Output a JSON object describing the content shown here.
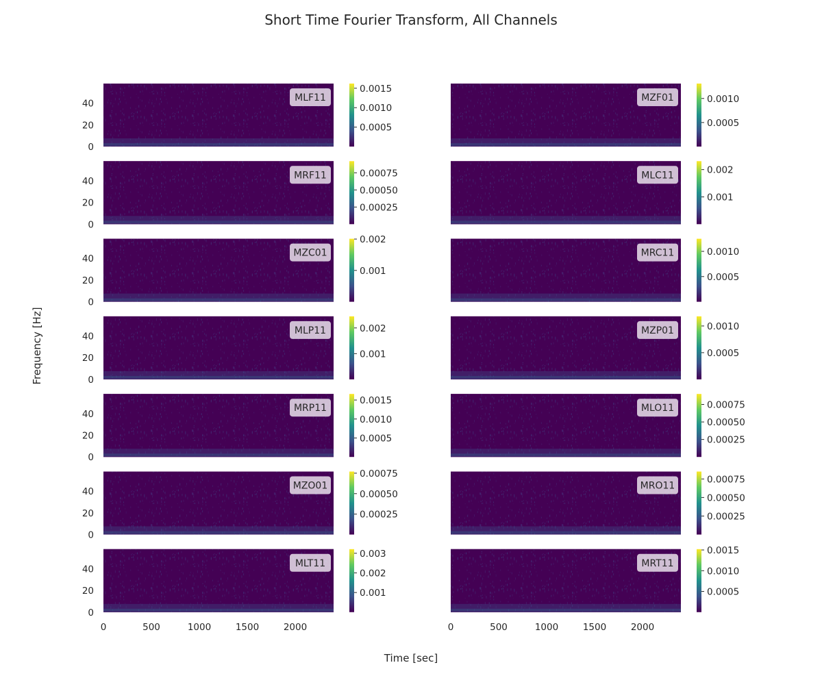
{
  "figure": {
    "title": "Short Time Fourier Transform, All Channels",
    "xlabel": "Time [sec]",
    "ylabel": "Frequency [Hz]"
  },
  "colormap": [
    "#440154",
    "#3b528b",
    "#21918c",
    "#5ec962",
    "#fde725"
  ],
  "chart_data": {
    "type": "heatmap",
    "x_ticks": [
      0,
      500,
      1000,
      1500,
      2000
    ],
    "y_ticks": [
      0,
      20,
      40
    ],
    "xlim": [
      0,
      2400
    ],
    "ylim": [
      0,
      58
    ],
    "panels": [
      {
        "channel": "MLF11",
        "colorbar_ticks": [
          "0.0005",
          "0.0010",
          "0.0015"
        ],
        "colorbar_tick_values": [
          0.0005,
          0.001,
          0.0015
        ],
        "colorbar_max": 0.00162
      },
      {
        "channel": "MZF01",
        "colorbar_ticks": [
          "0.0005",
          "0.0010"
        ],
        "colorbar_tick_values": [
          0.0005,
          0.001
        ],
        "colorbar_max": 0.00131
      },
      {
        "channel": "MRF11",
        "colorbar_ticks": [
          "0.00025",
          "0.00050",
          "0.00075"
        ],
        "colorbar_tick_values": [
          0.00025,
          0.0005,
          0.00075
        ],
        "colorbar_max": 0.00092
      },
      {
        "channel": "MLC11",
        "colorbar_ticks": [
          "0.001",
          "0.002"
        ],
        "colorbar_tick_values": [
          0.001,
          0.002
        ],
        "colorbar_max": 0.00231
      },
      {
        "channel": "MZC01",
        "colorbar_ticks": [
          "0.001",
          "0.002"
        ],
        "colorbar_tick_values": [
          0.001,
          0.002
        ],
        "colorbar_max": 0.00201
      },
      {
        "channel": "MRC11",
        "colorbar_ticks": [
          "0.0005",
          "0.0010"
        ],
        "colorbar_tick_values": [
          0.0005,
          0.001
        ],
        "colorbar_max": 0.00125
      },
      {
        "channel": "MLP11",
        "colorbar_ticks": [
          "0.001",
          "0.002"
        ],
        "colorbar_tick_values": [
          0.001,
          0.002
        ],
        "colorbar_max": 0.00245
      },
      {
        "channel": "MZP01",
        "colorbar_ticks": [
          "0.0005",
          "0.0010"
        ],
        "colorbar_tick_values": [
          0.0005,
          0.001
        ],
        "colorbar_max": 0.00118
      },
      {
        "channel": "MRP11",
        "colorbar_ticks": [
          "0.0005",
          "0.0010",
          "0.0015"
        ],
        "colorbar_tick_values": [
          0.0005,
          0.001,
          0.0015
        ],
        "colorbar_max": 0.00166
      },
      {
        "channel": "MLO11",
        "colorbar_ticks": [
          "0.00025",
          "0.00050",
          "0.00075"
        ],
        "colorbar_tick_values": [
          0.00025,
          0.0005,
          0.00075
        ],
        "colorbar_max": 0.0009
      },
      {
        "channel": "MZO01",
        "colorbar_ticks": [
          "0.00025",
          "0.00050",
          "0.00075"
        ],
        "colorbar_tick_values": [
          0.00025,
          0.0005,
          0.00075
        ],
        "colorbar_max": 0.00077
      },
      {
        "channel": "MRO11",
        "colorbar_ticks": [
          "0.00025",
          "0.00050",
          "0.00075"
        ],
        "colorbar_tick_values": [
          0.00025,
          0.0005,
          0.00075
        ],
        "colorbar_max": 0.00085
      },
      {
        "channel": "MLT11",
        "colorbar_ticks": [
          "0.001",
          "0.002",
          "0.003"
        ],
        "colorbar_tick_values": [
          0.001,
          0.002,
          0.003
        ],
        "colorbar_max": 0.00321
      },
      {
        "channel": "MRT11",
        "colorbar_ticks": [
          "0.0005",
          "0.0010",
          "0.0015"
        ],
        "colorbar_tick_values": [
          0.0005,
          0.001,
          0.0015
        ],
        "colorbar_max": 0.00152
      }
    ]
  }
}
